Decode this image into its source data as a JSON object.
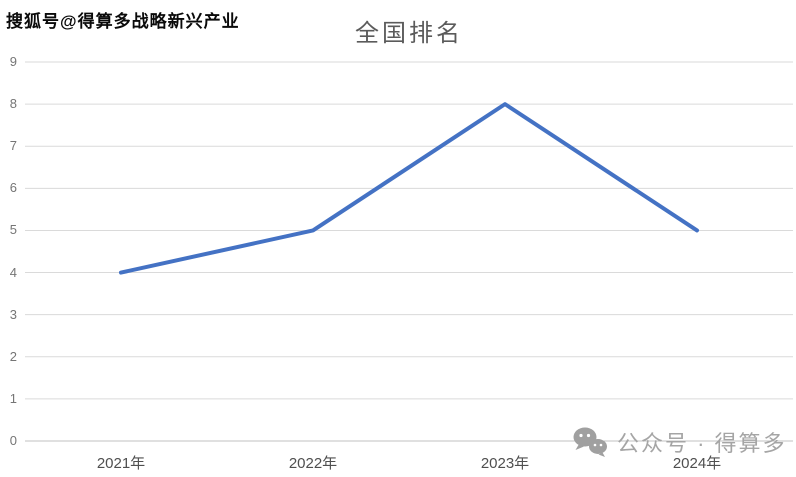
{
  "watermarks": {
    "top_left": "搜狐号@得算多战略新兴产业",
    "bottom_right": "公众号 · 得算多"
  },
  "chart_data": {
    "type": "line",
    "title": "全国排名",
    "categories": [
      "2021年",
      "2022年",
      "2023年",
      "2024年"
    ],
    "series": [
      {
        "name": "全国排名",
        "values": [
          4,
          5,
          8,
          5
        ]
      }
    ],
    "xlabel": "",
    "ylabel": "",
    "ylim": [
      0,
      9
    ],
    "yticks": [
      0,
      1,
      2,
      3,
      4,
      5,
      6,
      7,
      8,
      9
    ],
    "grid": true,
    "legend": "none",
    "line_color": "#4472C4",
    "grid_color": "#DADADA",
    "axis_line_color": "#C0C0C0",
    "title_color": "#5B5B5B",
    "tick_label_color": "#757575"
  },
  "icons": {
    "bottom_right_icon": "wechat-icon"
  }
}
